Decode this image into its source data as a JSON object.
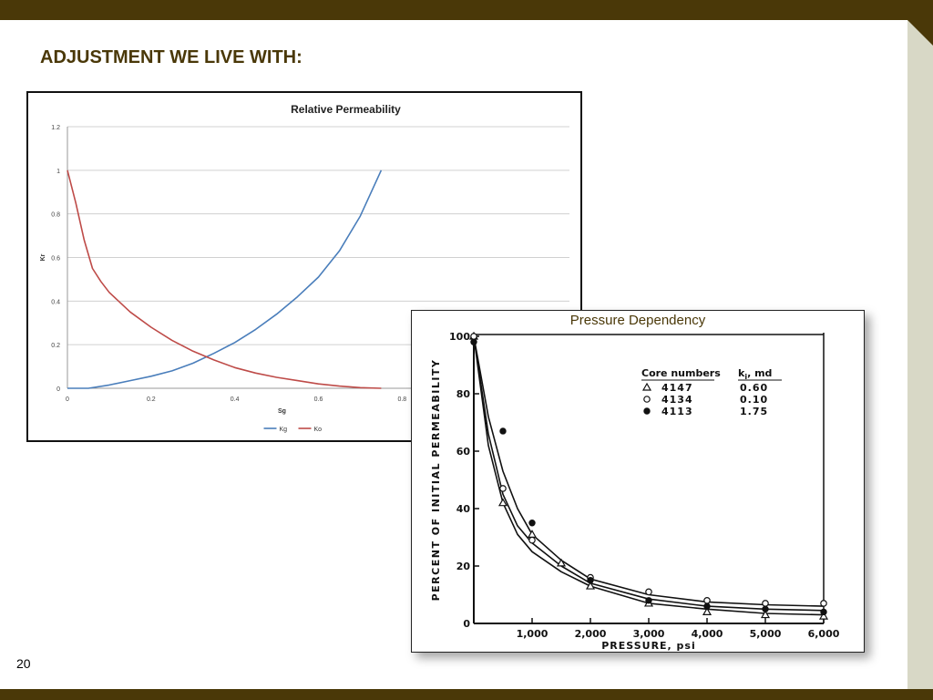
{
  "slide": {
    "title": "ADJUSTMENT WE LIVE WITH:",
    "number": "20",
    "colors": {
      "bar": "#4a3808",
      "strip": "#d8d8c6",
      "title": "#4a3808"
    }
  },
  "chart_data": [
    {
      "type": "line",
      "title": "Relative Permeability",
      "xlabel": "Sg",
      "ylabel": "Kr",
      "xlim": [
        0,
        1.2
      ],
      "ylim": [
        0,
        1.2
      ],
      "x_ticks": [
        "0",
        "0.2",
        "0.4",
        "0.6",
        "0.8"
      ],
      "y_ticks": [
        "0",
        "0.2",
        "0.4",
        "0.6",
        "0.8",
        "1",
        "1.2"
      ],
      "grid": "horizontal",
      "legend": "bottom-center",
      "series": [
        {
          "name": "Kg",
          "color": "#4a7ebb",
          "x": [
            0,
            0.05,
            0.1,
            0.15,
            0.2,
            0.25,
            0.3,
            0.35,
            0.4,
            0.45,
            0.5,
            0.55,
            0.6,
            0.65,
            0.7,
            0.75
          ],
          "y": [
            0,
            0.0,
            0.015,
            0.035,
            0.055,
            0.08,
            0.115,
            0.16,
            0.21,
            0.27,
            0.34,
            0.42,
            0.51,
            0.63,
            0.79,
            1.0
          ]
        },
        {
          "name": "Ko",
          "color": "#be4b48",
          "x": [
            0,
            0.02,
            0.04,
            0.06,
            0.08,
            0.1,
            0.15,
            0.2,
            0.25,
            0.3,
            0.35,
            0.4,
            0.45,
            0.5,
            0.55,
            0.6,
            0.65,
            0.7,
            0.75
          ],
          "y": [
            1.0,
            0.85,
            0.68,
            0.55,
            0.49,
            0.44,
            0.35,
            0.28,
            0.22,
            0.17,
            0.13,
            0.095,
            0.07,
            0.05,
            0.035,
            0.02,
            0.01,
            0.003,
            0.0
          ]
        }
      ]
    },
    {
      "type": "scatter",
      "title": "Pressure Dependency",
      "xlabel": "PRESSURE, psi",
      "ylabel": "PERCENT OF INITIAL PERMEABILITY",
      "xlim": [
        0,
        6000
      ],
      "ylim": [
        0,
        100
      ],
      "x_ticks": [
        {
          "v": 1000,
          "l": "1,000"
        },
        {
          "v": 2000,
          "l": "2,000"
        },
        {
          "v": 3000,
          "l": "3,000"
        },
        {
          "v": 4000,
          "l": "4,000"
        },
        {
          "v": 5000,
          "l": "5,000"
        },
        {
          "v": 6000,
          "l": "6,000"
        }
      ],
      "y_ticks": [
        {
          "v": 0,
          "l": "0"
        },
        {
          "v": 20,
          "l": "20"
        },
        {
          "v": 40,
          "l": "40"
        },
        {
          "v": 60,
          "l": "60"
        },
        {
          "v": 80,
          "l": "80"
        },
        {
          "v": 100,
          "l": "100"
        }
      ],
      "legend": {
        "header_core": "Core numbers",
        "header_k": "k",
        "header_k_sub": "i",
        "header_k_unit": ", md",
        "entries": [
          {
            "symbol": "triangle",
            "core": "4147",
            "k": "0.60"
          },
          {
            "symbol": "open-circle",
            "core": "4134",
            "k": "0.10"
          },
          {
            "symbol": "filled-circle",
            "core": "4113",
            "k": "1.75"
          }
        ]
      },
      "series": [
        {
          "core": "4147",
          "symbol": "triangle",
          "x": [
            0,
            500,
            1000,
            1500,
            2000,
            3000,
            4000,
            5000,
            6000
          ],
          "y": [
            100,
            42,
            31,
            21,
            13,
            7,
            4,
            3,
            2.5
          ]
        },
        {
          "core": "4134",
          "symbol": "open-circle",
          "x": [
            0,
            500,
            1000,
            2000,
            3000,
            4000,
            5000,
            6000
          ],
          "y": [
            100,
            47,
            29,
            16,
            11,
            8,
            7,
            7
          ]
        },
        {
          "core": "4113",
          "symbol": "filled-circle",
          "x": [
            0,
            500,
            1000,
            2000,
            3000,
            4000,
            5000,
            6000
          ],
          "y": [
            98,
            67,
            35,
            15,
            8,
            6,
            5,
            4
          ]
        }
      ],
      "curves": [
        {
          "x": [
            0,
            250,
            500,
            750,
            1000,
            1500,
            2000,
            3000,
            4000,
            5000,
            6000
          ],
          "y": [
            100,
            66,
            45,
            34,
            28,
            20,
            14,
            8.5,
            6,
            5,
            4.5
          ]
        },
        {
          "x": [
            0,
            250,
            500,
            750,
            1000,
            1500,
            2000,
            3000,
            4000,
            5000,
            6000
          ],
          "y": [
            100,
            72,
            53,
            40,
            31,
            22,
            15.5,
            10,
            7.5,
            6.5,
            6
          ]
        },
        {
          "x": [
            0,
            250,
            500,
            750,
            1000,
            1500,
            2000,
            3000,
            4000,
            5000,
            6000
          ],
          "y": [
            100,
            62,
            42,
            31,
            25,
            18,
            13,
            7,
            5,
            3.5,
            3
          ]
        }
      ]
    }
  ]
}
